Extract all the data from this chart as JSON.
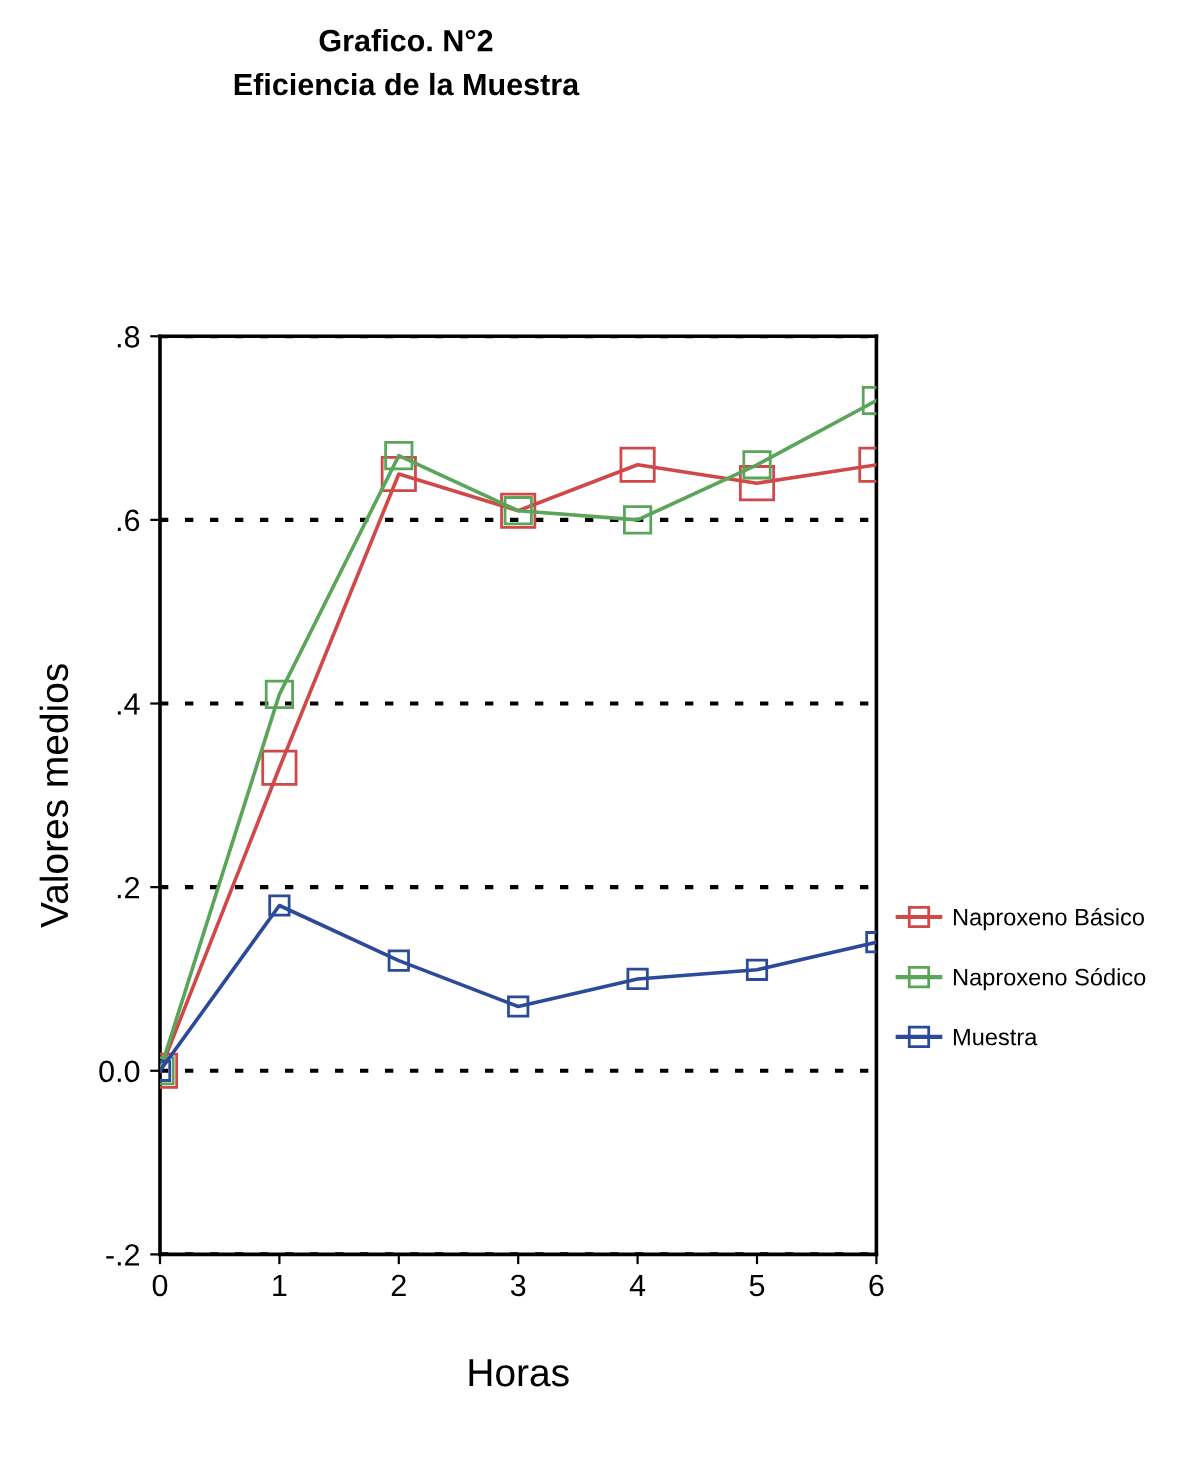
{
  "chart_data": {
    "type": "line",
    "title": "Grafico. N°2",
    "subtitle": "Eficiencia de la Muestra",
    "xlabel": "Horas",
    "ylabel": "Valores medios",
    "x": [
      0,
      1,
      2,
      3,
      4,
      5,
      6
    ],
    "series": [
      {
        "name": "Naproxeno Básico",
        "color": "#d04848",
        "values": [
          0,
          0.33,
          0.65,
          0.61,
          0.66,
          0.64,
          0.66
        ]
      },
      {
        "name": "Naproxeno Sódico",
        "color": "#5aa55a",
        "values": [
          0,
          0.41,
          0.67,
          0.61,
          0.6,
          0.66,
          0.73
        ]
      },
      {
        "name": "Muestra",
        "color": "#2c4a9a",
        "values": [
          0,
          0.18,
          0.12,
          0.07,
          0.1,
          0.11,
          0.14
        ]
      }
    ],
    "xlim": [
      0,
      6
    ],
    "xticks": [
      0,
      1,
      2,
      3,
      4,
      5,
      6
    ],
    "ylim": [
      -0.2,
      0.8
    ],
    "yticks": [
      {
        "value": -0.2,
        "label": "-.2"
      },
      {
        "value": 0,
        "label": "0.0"
      },
      {
        "value": 0.2,
        "label": ".2"
      },
      {
        "value": 0.4,
        "label": ".4"
      },
      {
        "value": 0.6,
        "label": ".6"
      },
      {
        "value": 0.8,
        "label": ".8"
      }
    ],
    "grid": "y",
    "legend": "right",
    "marker": "square",
    "line_style": "solid"
  }
}
